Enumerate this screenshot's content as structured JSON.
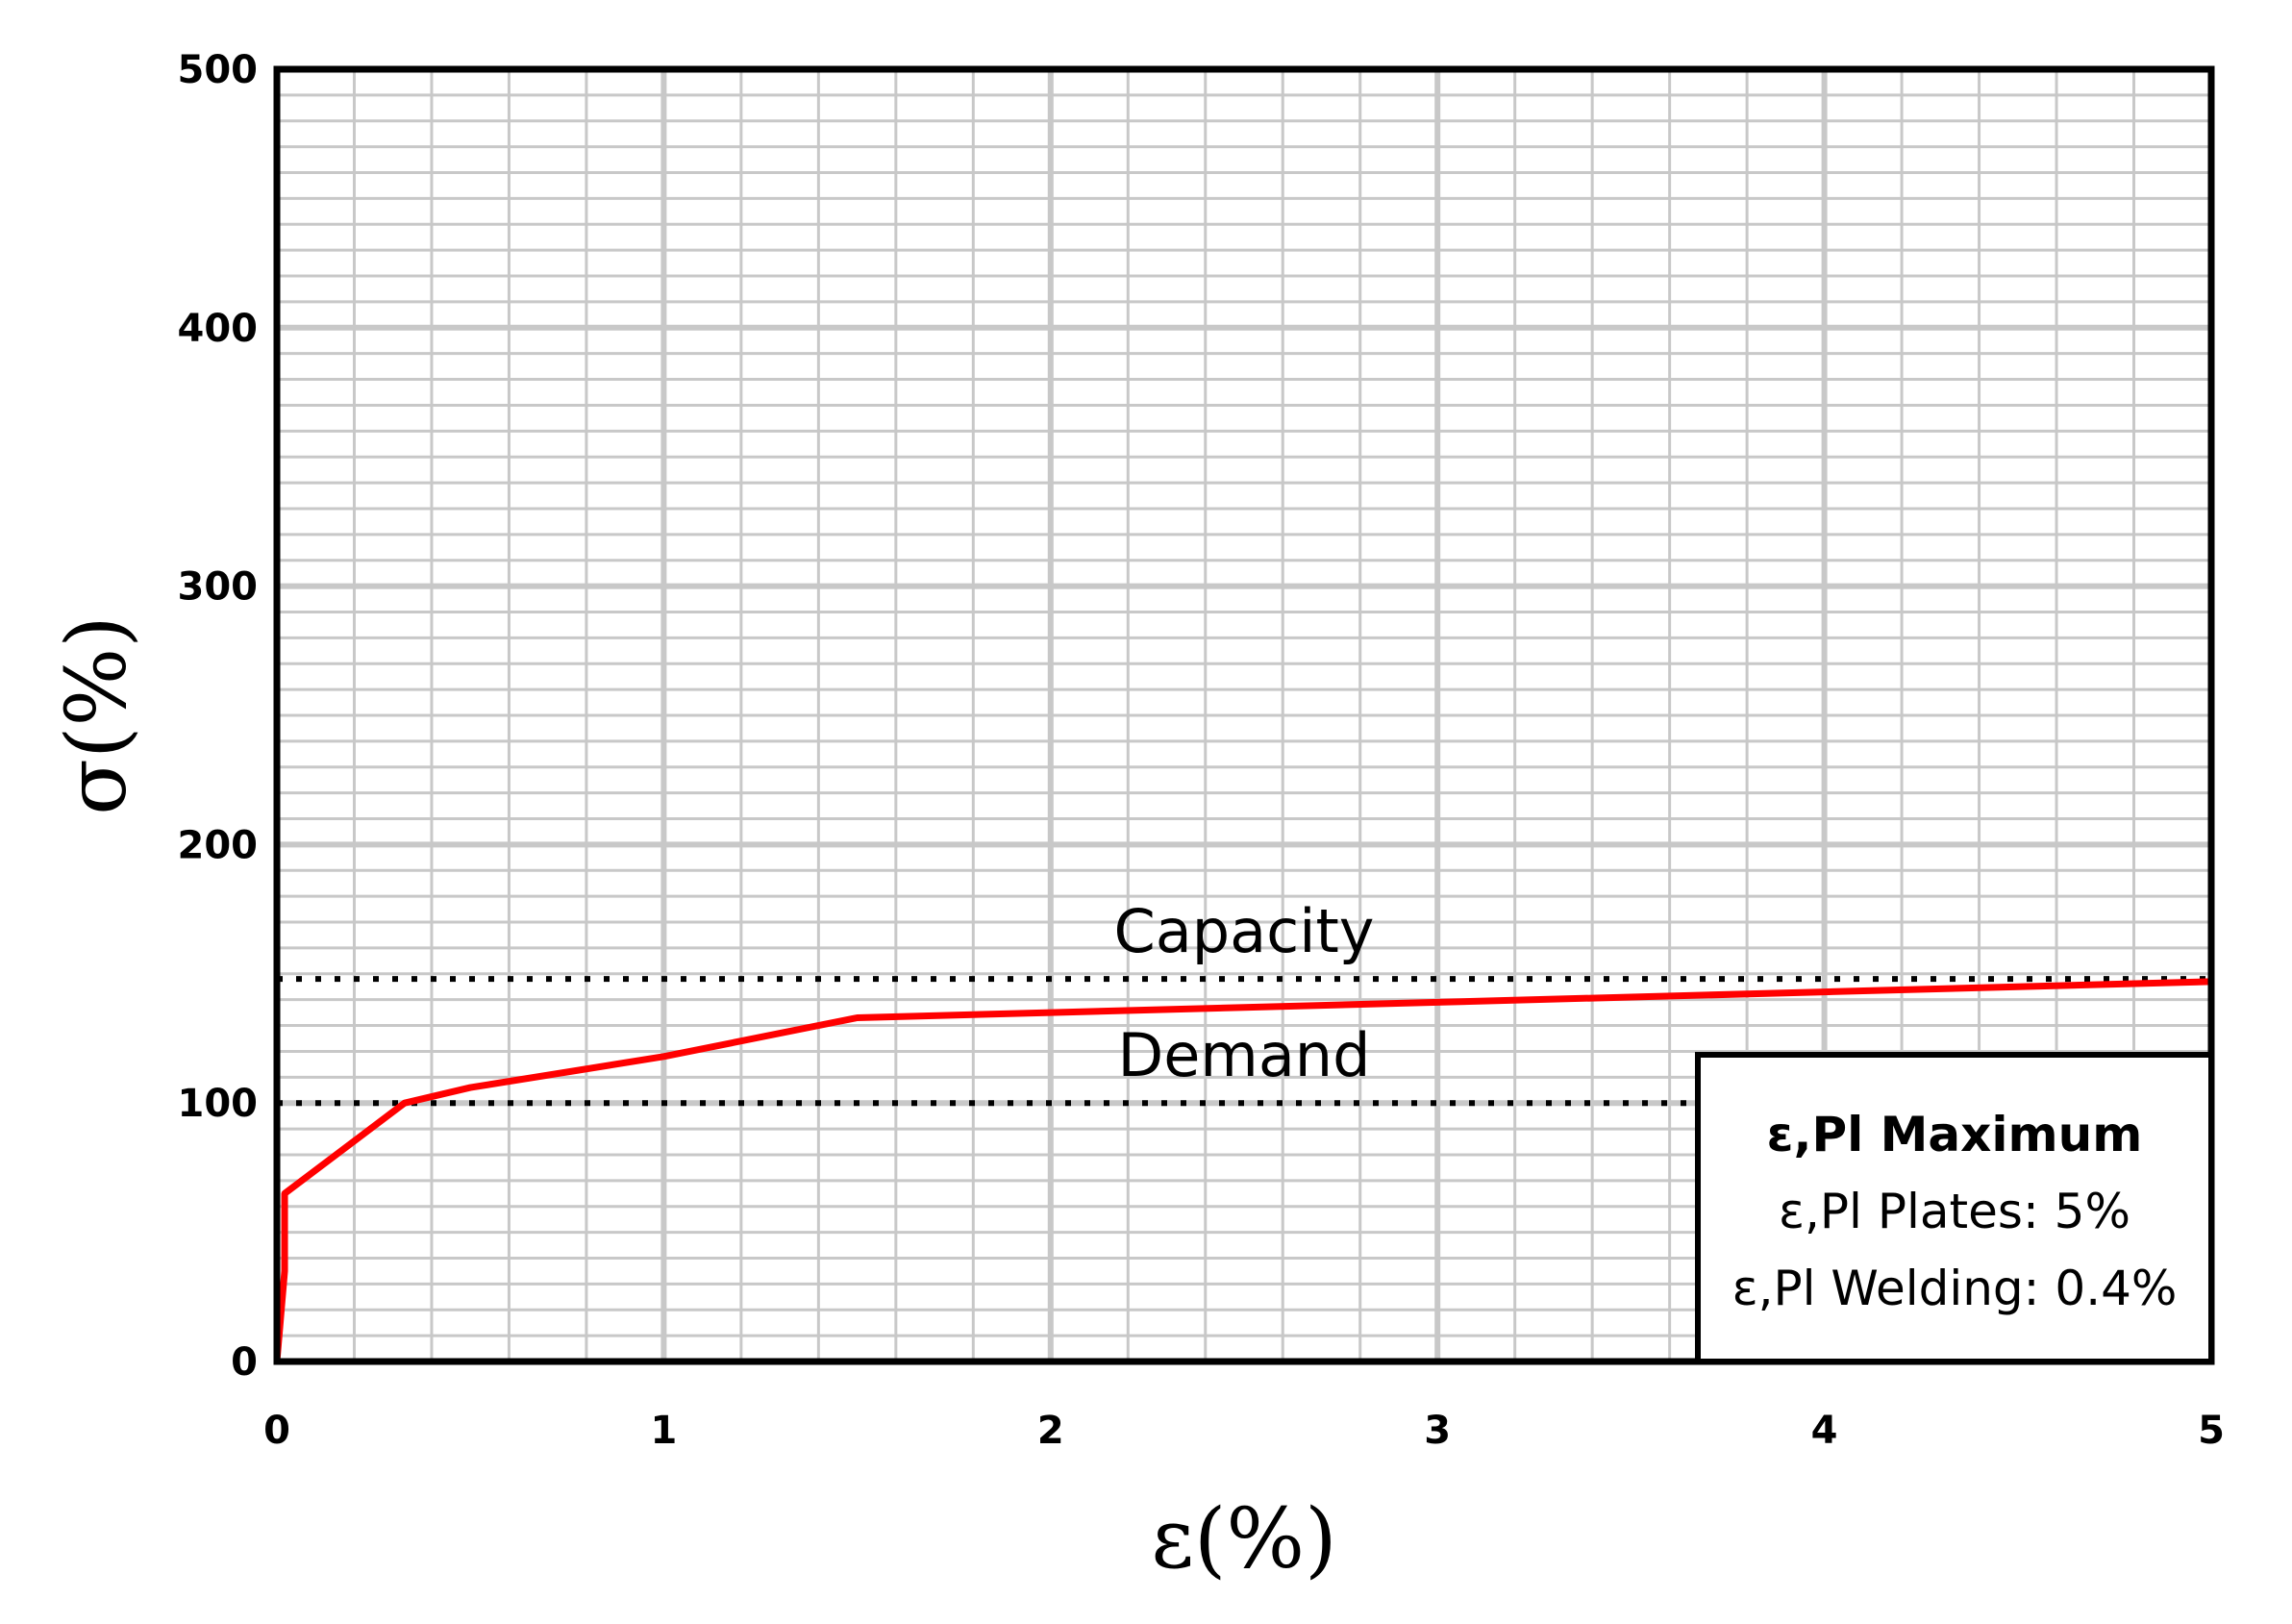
{
  "chart_data": {
    "type": "line",
    "title": "",
    "xlabel": "ε(%)",
    "ylabel": "σ(%)",
    "xlim": [
      0,
      5
    ],
    "ylim": [
      0,
      500
    ],
    "xticks": [
      "0",
      "1",
      "2",
      "3",
      "4",
      "5"
    ],
    "yticks": [
      "0",
      "100",
      "200",
      "300",
      "400",
      "500"
    ],
    "grid": true,
    "series": [
      {
        "color": "#ff0000",
        "x": [
          0,
          0.02,
          0.02,
          0.33,
          0.5,
          1.0,
          1.5,
          2.0,
          2.5,
          3.0,
          3.5,
          4.0,
          4.5,
          5.0
        ],
        "y": [
          0,
          35,
          65,
          100,
          106,
          118,
          133,
          135,
          137,
          139,
          141,
          143,
          145,
          147
        ]
      }
    ],
    "reference_lines": [
      {
        "label": "Capacity",
        "y": 148,
        "style": "dotted",
        "color": "#000000"
      },
      {
        "label": "Demand",
        "y": 100,
        "style": "dotted",
        "color": "#000000"
      }
    ],
    "legend": {
      "position": "bottom-right",
      "title": "ε,Pl Maximum",
      "lines": [
        "ε,Pl Plates: 5%",
        "ε,Pl Welding: 0.4%"
      ]
    }
  }
}
